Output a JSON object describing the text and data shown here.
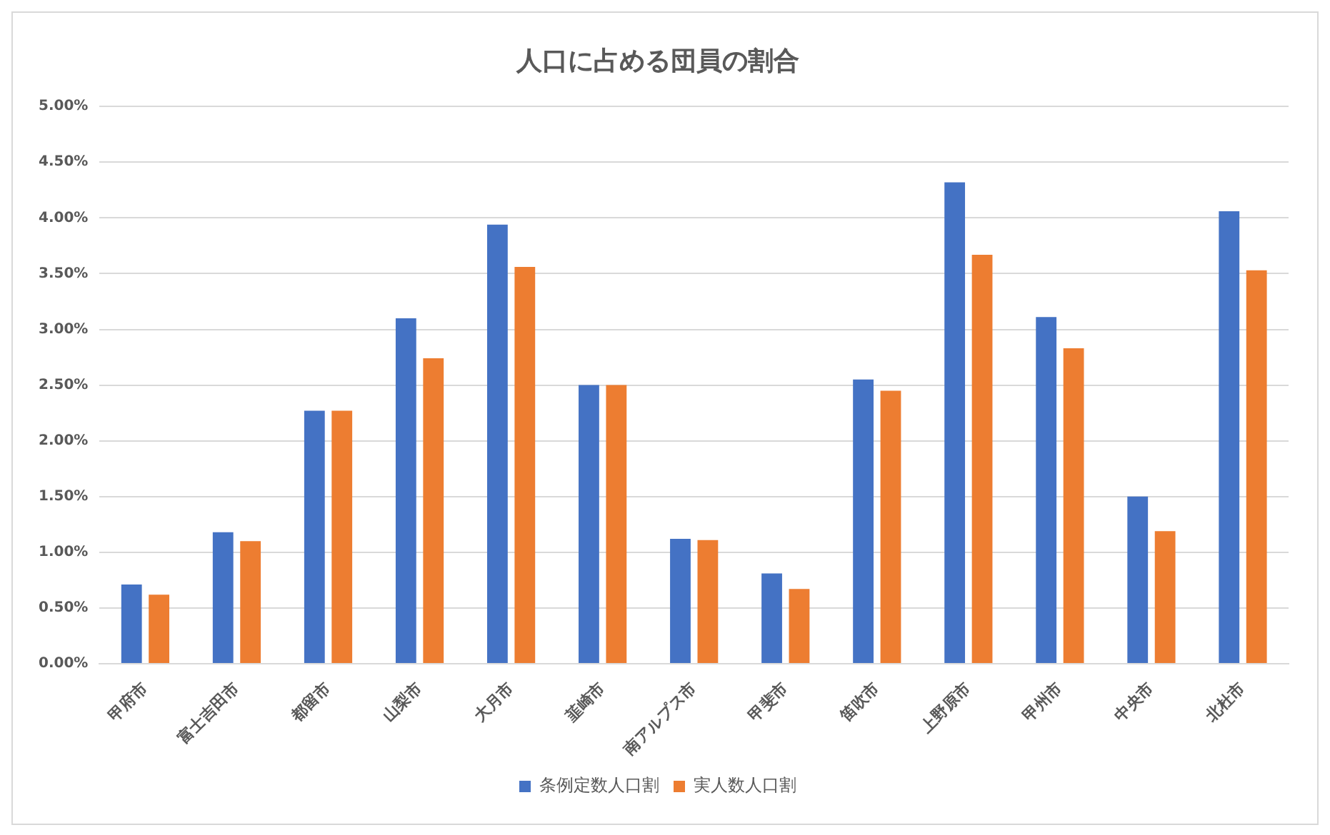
{
  "chart_data": {
    "type": "bar",
    "title": "人口に占める団員の割合",
    "categories": [
      "甲府市",
      "富士吉田市",
      "都留市",
      "山梨市",
      "大月市",
      "韮崎市",
      "南アルプス市",
      "甲斐市",
      "笛吹市",
      "上野原市",
      "甲州市",
      "中央市",
      "北杜市"
    ],
    "series": [
      {
        "name": "条例定数人口割",
        "color": "#4472c4",
        "values": [
          0.71,
          1.18,
          2.27,
          3.1,
          3.94,
          2.5,
          1.12,
          0.81,
          2.55,
          4.32,
          3.11,
          1.5,
          4.06
        ]
      },
      {
        "name": "実人数人口割",
        "color": "#ed7d31",
        "values": [
          0.62,
          1.1,
          2.27,
          2.74,
          3.56,
          2.5,
          1.11,
          0.67,
          2.45,
          3.67,
          2.83,
          1.19,
          3.53
        ]
      }
    ],
    "ylim": [
      0,
      5
    ],
    "yticks": [
      {
        "value": 0,
        "label": "0.00%"
      },
      {
        "value": 0.5,
        "label": "0.50%"
      },
      {
        "value": 1,
        "label": "1.00%"
      },
      {
        "value": 1.5,
        "label": "1.50%"
      },
      {
        "value": 2,
        "label": "2.00%"
      },
      {
        "value": 2.5,
        "label": "2.50%"
      },
      {
        "value": 3,
        "label": "3.00%"
      },
      {
        "value": 3.5,
        "label": "3.50%"
      },
      {
        "value": 4,
        "label": "4.00%"
      },
      {
        "value": 4.5,
        "label": "4.50%"
      },
      {
        "value": 5,
        "label": "5.00%"
      }
    ],
    "grid": "y",
    "legend": "bottom"
  }
}
